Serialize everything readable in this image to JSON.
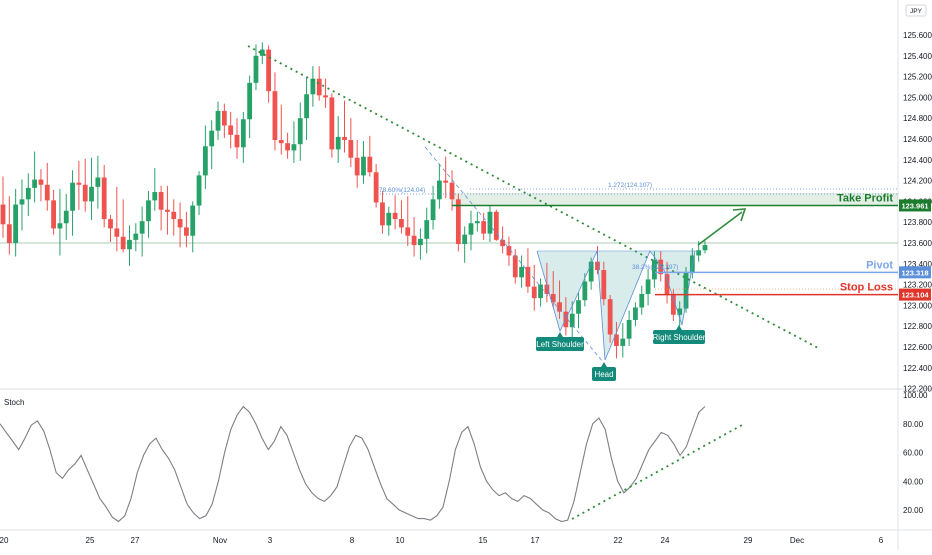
{
  "header": {
    "currency": "JPY"
  },
  "chart_data": [
    {
      "type": "candlestick",
      "ylim": [
        122.2,
        125.8
      ],
      "y_ticks": [
        "125.600",
        "125.400",
        "125.200",
        "125.000",
        "124.800",
        "124.600",
        "124.400",
        "124.200",
        "124.000",
        "123.800",
        "123.600",
        "123.400",
        "123.200",
        "123.000",
        "122.800",
        "122.600",
        "122.400",
        "122.200"
      ],
      "x_ticks": [
        "20",
        "25",
        "27",
        "Nov",
        "3",
        "8",
        "10",
        "15",
        "17",
        "22",
        "24",
        "29",
        "Dec",
        "6"
      ],
      "last_price": 123.6,
      "price_badges": [
        {
          "value": "123.961",
          "color": "#1b7c2d"
        },
        {
          "value": "123.318",
          "color": "#5b8fd9"
        },
        {
          "value": "123.104",
          "color": "#e0352b"
        }
      ],
      "levels": [
        {
          "name": "take_profit",
          "label": "Take Profit",
          "price": 123.961,
          "color": "#1b7c2d"
        },
        {
          "name": "pivot",
          "label": "Pivot",
          "price": 123.318,
          "color": "#7ba6e8"
        },
        {
          "name": "stop_loss",
          "label": "Stop Loss",
          "price": 123.104,
          "color": "#e0352b"
        }
      ],
      "fib_labels": [
        {
          "text": "78.60%(124.04)",
          "price": 124.04
        },
        {
          "text": "1.272(124.107)",
          "price": 124.107
        },
        {
          "text": "38.2%(123.297)",
          "price": 123.297
        }
      ],
      "pattern_labels": [
        "Left Shoulder",
        "Head",
        "Right Shoulder"
      ],
      "candles": [
        [
          123.97,
          124.24,
          123.65,
          123.78
        ],
        [
          123.78,
          124.05,
          123.49,
          123.6
        ],
        [
          123.6,
          124.12,
          123.47,
          123.97
        ],
        [
          123.97,
          124.21,
          123.72,
          124.02
        ],
        [
          124.02,
          124.27,
          123.86,
          124.13
        ],
        [
          124.13,
          124.48,
          123.99,
          124.21
        ],
        [
          124.21,
          124.31,
          124.0,
          124.16
        ],
        [
          124.16,
          124.37,
          123.91,
          124.01
        ],
        [
          124.01,
          124.11,
          123.68,
          123.74
        ],
        [
          123.74,
          124.12,
          123.48,
          123.79
        ],
        [
          123.79,
          124.07,
          123.63,
          123.91
        ],
        [
          123.91,
          124.3,
          123.67,
          124.18
        ],
        [
          124.18,
          124.39,
          123.92,
          124.16
        ],
        [
          124.16,
          124.41,
          123.9,
          124.0
        ],
        [
          124.0,
          124.42,
          123.82,
          124.14
        ],
        [
          124.14,
          124.44,
          123.93,
          124.23
        ],
        [
          124.23,
          124.35,
          123.75,
          123.83
        ],
        [
          123.83,
          123.87,
          123.61,
          123.74
        ],
        [
          123.74,
          124.14,
          123.52,
          123.66
        ],
        [
          123.66,
          124.02,
          123.51,
          123.54
        ],
        [
          123.54,
          123.77,
          123.38,
          123.63
        ],
        [
          123.63,
          123.79,
          123.52,
          123.69
        ],
        [
          123.69,
          123.95,
          123.47,
          123.81
        ],
        [
          123.81,
          124.1,
          123.65,
          124.01
        ],
        [
          124.01,
          124.32,
          123.91,
          124.09
        ],
        [
          124.09,
          124.15,
          123.72,
          123.92
        ],
        [
          123.92,
          124.15,
          123.68,
          123.9
        ],
        [
          123.9,
          124.02,
          123.67,
          123.83
        ],
        [
          123.83,
          123.99,
          123.56,
          123.75
        ],
        [
          123.75,
          123.9,
          123.56,
          123.67
        ],
        [
          123.67,
          124.0,
          123.51,
          123.96
        ],
        [
          123.96,
          124.29,
          123.87,
          124.25
        ],
        [
          124.25,
          124.73,
          124.12,
          124.53
        ],
        [
          124.53,
          124.78,
          124.31,
          124.68
        ],
        [
          124.68,
          124.96,
          124.59,
          124.87
        ],
        [
          124.87,
          124.94,
          124.61,
          124.73
        ],
        [
          124.73,
          124.86,
          124.51,
          124.64
        ],
        [
          124.64,
          124.8,
          124.41,
          124.52
        ],
        [
          124.52,
          124.86,
          124.37,
          124.79
        ],
        [
          124.79,
          125.21,
          124.61,
          125.14
        ],
        [
          125.14,
          125.51,
          125.07,
          125.4
        ],
        [
          125.4,
          125.53,
          125.32,
          125.46
        ],
        [
          125.46,
          125.5,
          124.95,
          125.06
        ],
        [
          125.06,
          125.24,
          124.49,
          124.59
        ],
        [
          124.59,
          124.93,
          124.45,
          124.56
        ],
        [
          124.56,
          124.66,
          124.41,
          124.49
        ],
        [
          124.49,
          124.77,
          124.37,
          124.55
        ],
        [
          124.55,
          124.95,
          124.39,
          124.8
        ],
        [
          124.8,
          125.19,
          124.59,
          125.03
        ],
        [
          125.03,
          125.3,
          124.91,
          125.18
        ],
        [
          125.18,
          125.3,
          124.97,
          125.02
        ],
        [
          125.02,
          125.18,
          124.9,
          125.0
        ],
        [
          125.0,
          125.04,
          124.42,
          124.5
        ],
        [
          124.5,
          124.82,
          124.37,
          124.62
        ],
        [
          124.62,
          124.97,
          124.47,
          124.59
        ],
        [
          124.59,
          124.8,
          124.33,
          124.42
        ],
        [
          124.42,
          124.59,
          124.13,
          124.25
        ],
        [
          124.25,
          124.58,
          124.17,
          124.43
        ],
        [
          124.43,
          124.63,
          124.24,
          124.28
        ],
        [
          124.28,
          124.36,
          123.94,
          123.99
        ],
        [
          123.99,
          124.1,
          123.69,
          123.77
        ],
        [
          123.77,
          123.95,
          123.67,
          123.89
        ],
        [
          123.89,
          124.06,
          123.73,
          123.83
        ],
        [
          123.83,
          124.01,
          123.69,
          123.75
        ],
        [
          123.75,
          124.05,
          123.57,
          123.67
        ],
        [
          123.67,
          123.85,
          123.47,
          123.58
        ],
        [
          123.58,
          123.74,
          123.44,
          123.64
        ],
        [
          123.64,
          123.94,
          123.5,
          123.82
        ],
        [
          123.82,
          124.15,
          123.73,
          124.02
        ],
        [
          124.02,
          124.36,
          123.93,
          124.2
        ],
        [
          124.2,
          124.43,
          124.03,
          124.18
        ],
        [
          124.18,
          124.3,
          123.91,
          124.02
        ],
        [
          124.02,
          124.07,
          123.52,
          123.59
        ],
        [
          123.59,
          123.76,
          123.41,
          123.68
        ],
        [
          123.68,
          123.91,
          123.53,
          123.79
        ],
        [
          123.79,
          123.9,
          123.71,
          123.81
        ],
        [
          123.81,
          123.89,
          123.63,
          123.69
        ],
        [
          123.69,
          123.96,
          123.61,
          123.9
        ],
        [
          123.9,
          123.92,
          123.62,
          123.63
        ],
        [
          123.63,
          123.76,
          123.5,
          123.57
        ],
        [
          123.57,
          123.66,
          123.38,
          123.48
        ],
        [
          123.48,
          123.54,
          123.21,
          123.27
        ],
        [
          123.27,
          123.48,
          123.17,
          123.37
        ],
        [
          123.37,
          123.55,
          123.12,
          123.18
        ],
        [
          123.18,
          123.39,
          122.95,
          123.07
        ],
        [
          123.07,
          123.26,
          122.99,
          123.2
        ],
        [
          123.2,
          123.41,
          123.03,
          123.11
        ],
        [
          123.11,
          123.33,
          122.98,
          123.03
        ],
        [
          123.03,
          123.24,
          122.87,
          122.94
        ],
        [
          122.94,
          123.08,
          122.71,
          122.79
        ],
        [
          122.79,
          123.04,
          122.66,
          122.92
        ],
        [
          122.92,
          123.12,
          122.78,
          123.05
        ],
        [
          123.05,
          123.31,
          122.99,
          123.23
        ],
        [
          123.23,
          123.46,
          123.15,
          123.42
        ],
        [
          123.42,
          123.57,
          123.3,
          123.34
        ],
        [
          123.34,
          123.42,
          123.0,
          123.06
        ],
        [
          123.06,
          123.1,
          122.64,
          122.72
        ],
        [
          122.72,
          122.84,
          122.49,
          122.61
        ],
        [
          122.61,
          122.83,
          122.5,
          122.68
        ],
        [
          122.68,
          122.95,
          122.61,
          122.86
        ],
        [
          122.86,
          123.03,
          122.8,
          122.98
        ],
        [
          122.98,
          123.19,
          122.91,
          123.11
        ],
        [
          123.11,
          123.35,
          123.0,
          123.25
        ],
        [
          123.25,
          123.52,
          123.17,
          123.44
        ],
        [
          123.44,
          123.52,
          123.23,
          123.3
        ],
        [
          123.3,
          123.42,
          123.02,
          123.1
        ],
        [
          123.1,
          123.16,
          122.85,
          122.91
        ],
        [
          122.91,
          123.04,
          122.8,
          122.97
        ],
        [
          122.97,
          123.37,
          122.93,
          123.32
        ],
        [
          123.32,
          123.55,
          123.26,
          123.48
        ],
        [
          123.48,
          123.62,
          123.42,
          123.53
        ],
        [
          123.53,
          123.62,
          123.5,
          123.58
        ]
      ]
    },
    {
      "type": "line",
      "title": "Stoch",
      "ylim": [
        0,
        100
      ],
      "y_ticks": [
        "100.00",
        "80.00",
        "60.00",
        "40.00",
        "20.00"
      ],
      "values": [
        80,
        74,
        68,
        62,
        70,
        79,
        82,
        75,
        62,
        46,
        42,
        48,
        52,
        58,
        48,
        38,
        28,
        22,
        15,
        12,
        16,
        28,
        46,
        58,
        66,
        70,
        62,
        56,
        48,
        36,
        24,
        18,
        14,
        16,
        24,
        40,
        60,
        76,
        86,
        92,
        88,
        80,
        70,
        62,
        68,
        78,
        72,
        60,
        48,
        38,
        32,
        28,
        26,
        30,
        36,
        50,
        64,
        72,
        70,
        62,
        50,
        38,
        28,
        24,
        20,
        18,
        16,
        14,
        14,
        13,
        16,
        22,
        40,
        62,
        74,
        78,
        66,
        50,
        40,
        34,
        30,
        32,
        28,
        26,
        30,
        28,
        24,
        20,
        18,
        14,
        12,
        13,
        26,
        46,
        66,
        80,
        84,
        76,
        56,
        40,
        32,
        36,
        42,
        52,
        62,
        68,
        74,
        72,
        66,
        58,
        64,
        76,
        88,
        92
      ]
    }
  ]
}
